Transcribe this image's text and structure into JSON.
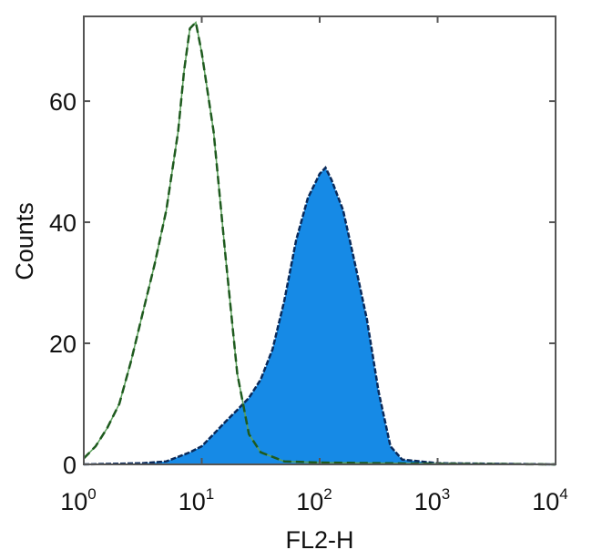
{
  "chart_data": {
    "type": "area",
    "title": "",
    "xlabel": "FL2-H",
    "ylabel": "Counts",
    "xscale": "log",
    "xlim": [
      1,
      10000
    ],
    "ylim": [
      0,
      74
    ],
    "grid": false,
    "x_ticks": [
      {
        "base": "10",
        "exp": "0",
        "value": 1
      },
      {
        "base": "10",
        "exp": "1",
        "value": 10
      },
      {
        "base": "10",
        "exp": "2",
        "value": 100
      },
      {
        "base": "10",
        "exp": "3",
        "value": 1000
      },
      {
        "base": "10",
        "exp": "4",
        "value": 10000
      }
    ],
    "y_ticks": [
      {
        "label": "0",
        "value": 0
      },
      {
        "label": "20",
        "value": 20
      },
      {
        "label": "40",
        "value": 40
      },
      {
        "label": "60",
        "value": 60
      }
    ],
    "series": [
      {
        "style": "dashed-outline",
        "color": "#1e5a1e",
        "points": [
          [
            1,
            1
          ],
          [
            1.26,
            3
          ],
          [
            1.58,
            6
          ],
          [
            2,
            10
          ],
          [
            2.51,
            17
          ],
          [
            3.16,
            25
          ],
          [
            3.98,
            33
          ],
          [
            5.01,
            42
          ],
          [
            6.31,
            55
          ],
          [
            7.08,
            65
          ],
          [
            7.94,
            72
          ],
          [
            8.91,
            73
          ],
          [
            10,
            68
          ],
          [
            12.6,
            55
          ],
          [
            15.8,
            35
          ],
          [
            20,
            15
          ],
          [
            25.1,
            5
          ],
          [
            31.6,
            2
          ],
          [
            50.1,
            0.5
          ],
          [
            100,
            0.3
          ],
          [
            1000,
            0.1
          ],
          [
            10000,
            0
          ]
        ]
      },
      {
        "style": "filled",
        "color": "#168ae6",
        "outline": "#0a2a5a",
        "points": [
          [
            1,
            0
          ],
          [
            3.16,
            0.2
          ],
          [
            5.01,
            0.5
          ],
          [
            7.94,
            2
          ],
          [
            10,
            3
          ],
          [
            12.6,
            5
          ],
          [
            15.8,
            7
          ],
          [
            20,
            9
          ],
          [
            25.1,
            11
          ],
          [
            31.6,
            14
          ],
          [
            39.8,
            19
          ],
          [
            50.1,
            27
          ],
          [
            63.1,
            37
          ],
          [
            79.4,
            44
          ],
          [
            100,
            48
          ],
          [
            112,
            49
          ],
          [
            126,
            47
          ],
          [
            158,
            42
          ],
          [
            200,
            33
          ],
          [
            251,
            24
          ],
          [
            316,
            12
          ],
          [
            398,
            3
          ],
          [
            501,
            0.8
          ],
          [
            1000,
            0.2
          ],
          [
            10000,
            0
          ]
        ]
      }
    ]
  }
}
